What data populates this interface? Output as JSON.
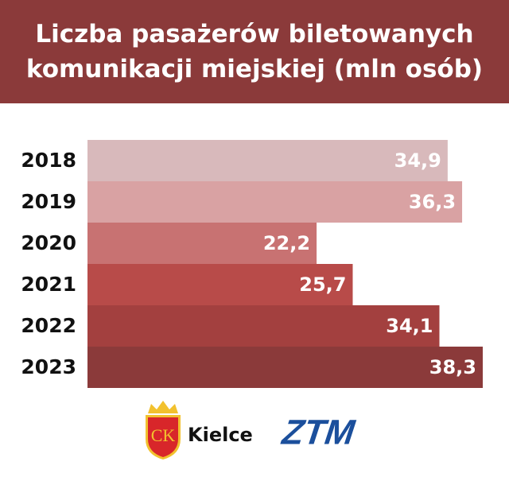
{
  "chart_data": {
    "type": "bar",
    "orientation": "horizontal",
    "title": "Liczba pasażerów biletowanych komunikacji miejskiej (mln osób)",
    "categories": [
      "2018",
      "2019",
      "2020",
      "2021",
      "2022",
      "2023"
    ],
    "values": [
      34.9,
      36.3,
      22.2,
      25.7,
      34.1,
      38.3
    ],
    "value_labels": [
      "34,9",
      "36,3",
      "22,2",
      "25,7",
      "34,1",
      "38,3"
    ],
    "colors": [
      "#d8b9bb",
      "#d9a2a3",
      "#c87272",
      "#b84b49",
      "#a3403f",
      "#8b3a3a"
    ]
  },
  "footer": {
    "crest": "CK",
    "city": "Kielce",
    "transit": "ZTM"
  }
}
